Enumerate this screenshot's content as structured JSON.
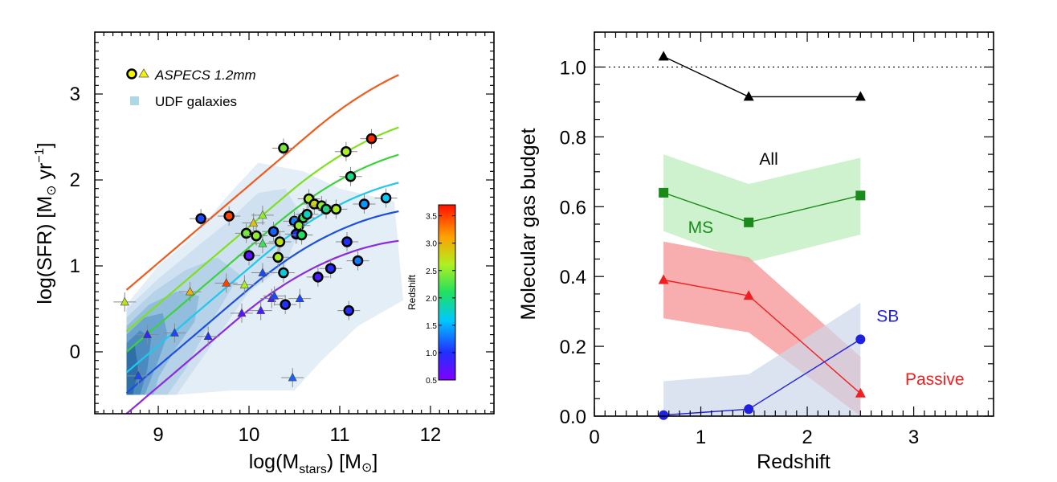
{
  "chart_data": [
    {
      "type": "scatter",
      "title": "",
      "xlabel": "log(M",
      "xlabel_sub": "stars",
      "xlabel_unit": ") [M",
      "xlabel_close": "]",
      "ylabel": "log(SFR) [M",
      "ylabel_unit": " yr",
      "ylabel_exp": "−1",
      "ylabel_close": "]",
      "sun_symbol": "⊙",
      "xlim": [
        8.3,
        12.7
      ],
      "ylim": [
        -0.72,
        3.72
      ],
      "xticks": [
        {
          "v": 9,
          "label": "9"
        },
        {
          "v": 10,
          "label": "10"
        },
        {
          "v": 11,
          "label": "11"
        },
        {
          "v": 12,
          "label": "12"
        }
      ],
      "yticks": [
        {
          "v": 0,
          "label": "0"
        },
        {
          "v": 1,
          "label": "1"
        },
        {
          "v": 2,
          "label": "2"
        },
        {
          "v": 3,
          "label": "3"
        }
      ],
      "legend": {
        "placement": "top-left",
        "entries": [
          {
            "label": "ASPECS 1.2mm",
            "style": "italic",
            "marker": "circle+triangle",
            "color": "#f2f20a"
          },
          {
            "label": "UDF galaxies",
            "style": "normal",
            "marker": "square",
            "color": "#add8e6"
          }
        ]
      },
      "colorbar": {
        "label": "Redshift",
        "range": [
          0.5,
          3.7
        ],
        "ticks": [
          {
            "v": 0.5,
            "label": "0.5"
          },
          {
            "v": 1.0,
            "label": "1.0"
          },
          {
            "v": 1.5,
            "label": "1.5"
          },
          {
            "v": 2.0,
            "label": "2.0"
          },
          {
            "v": 2.5,
            "label": "2.5"
          },
          {
            "v": 3.0,
            "label": "3.0"
          },
          {
            "v": 3.5,
            "label": "3.5"
          }
        ]
      },
      "main_sequence_curves": [
        {
          "z": 0.5,
          "color": "#8a2be2"
        },
        {
          "z": 1.0,
          "color": "#1e50e0"
        },
        {
          "z": 1.5,
          "color": "#1ec8ee"
        },
        {
          "z": 2.0,
          "color": "#3cd23c"
        },
        {
          "z": 2.5,
          "color": "#7fe01e"
        },
        {
          "z": 3.5,
          "color": "#f05a1e"
        }
      ],
      "series": [
        {
          "name": "ASPECS 1.2mm",
          "marker": "circle",
          "points": [
            {
              "x": 9.47,
              "y": 1.55,
              "z": 1.1
            },
            {
              "x": 9.78,
              "y": 1.58,
              "z": 3.5
            },
            {
              "x": 9.97,
              "y": 1.38,
              "z": 2.4
            },
            {
              "x": 10.0,
              "y": 1.12,
              "z": 0.7
            },
            {
              "x": 10.08,
              "y": 1.35,
              "z": 2.5
            },
            {
              "x": 10.27,
              "y": 1.4,
              "z": 1.2
            },
            {
              "x": 10.32,
              "y": 1.1,
              "z": 2.6
            },
            {
              "x": 10.34,
              "y": 1.28,
              "z": 2.7
            },
            {
              "x": 10.38,
              "y": 2.37,
              "z": 2.4
            },
            {
              "x": 10.38,
              "y": 0.92,
              "z": 1.7
            },
            {
              "x": 10.4,
              "y": 0.55,
              "z": 1.0
            },
            {
              "x": 10.5,
              "y": 1.52,
              "z": 1.3
            },
            {
              "x": 10.52,
              "y": 1.37,
              "z": 1.0
            },
            {
              "x": 10.55,
              "y": 1.47,
              "z": 2.5
            },
            {
              "x": 10.58,
              "y": 1.36,
              "z": 2.1
            },
            {
              "x": 10.6,
              "y": 1.56,
              "z": 2.2
            },
            {
              "x": 10.64,
              "y": 1.6,
              "z": 1.8
            },
            {
              "x": 10.66,
              "y": 1.78,
              "z": 2.6
            },
            {
              "x": 10.72,
              "y": 1.72,
              "z": 2.8
            },
            {
              "x": 10.76,
              "y": 0.87,
              "z": 0.8
            },
            {
              "x": 10.8,
              "y": 1.7,
              "z": 2.5
            },
            {
              "x": 10.85,
              "y": 1.66,
              "z": 2.0
            },
            {
              "x": 10.9,
              "y": 0.97,
              "z": 1.0
            },
            {
              "x": 10.96,
              "y": 1.66,
              "z": 2.6
            },
            {
              "x": 11.07,
              "y": 2.33,
              "z": 2.6
            },
            {
              "x": 11.08,
              "y": 1.28,
              "z": 1.0
            },
            {
              "x": 11.1,
              "y": 0.48,
              "z": 1.0
            },
            {
              "x": 11.12,
              "y": 2.04,
              "z": 2.0
            },
            {
              "x": 11.2,
              "y": 1.06,
              "z": 1.3
            },
            {
              "x": 11.27,
              "y": 1.72,
              "z": 1.4
            },
            {
              "x": 11.35,
              "y": 2.48,
              "z": 3.6
            },
            {
              "x": 11.51,
              "y": 1.79,
              "z": 1.6
            }
          ]
        },
        {
          "name": "",
          "marker": "triangle",
          "points": [
            {
              "x": 8.63,
              "y": 0.58,
              "z": 2.7
            },
            {
              "x": 8.78,
              "y": -0.28,
              "z": 1.1
            },
            {
              "x": 8.88,
              "y": 0.2,
              "z": 0.9
            },
            {
              "x": 9.18,
              "y": 0.22,
              "z": 1.1
            },
            {
              "x": 9.35,
              "y": 0.7,
              "z": 3.0
            },
            {
              "x": 9.55,
              "y": 0.18,
              "z": 1.0
            },
            {
              "x": 9.75,
              "y": 0.8,
              "z": 3.5
            },
            {
              "x": 9.92,
              "y": 0.45,
              "z": 0.7
            },
            {
              "x": 9.95,
              "y": 0.78,
              "z": 2.6
            },
            {
              "x": 10.05,
              "y": 1.5,
              "z": 2.9
            },
            {
              "x": 10.13,
              "y": 0.48,
              "z": 0.8
            },
            {
              "x": 10.15,
              "y": 1.59,
              "z": 2.5
            },
            {
              "x": 10.15,
              "y": 1.26,
              "z": 2.2
            },
            {
              "x": 10.15,
              "y": 0.92,
              "z": 1.1
            },
            {
              "x": 10.25,
              "y": 0.62,
              "z": 0.8
            },
            {
              "x": 10.28,
              "y": 0.65,
              "z": 1.1
            },
            {
              "x": 10.48,
              "y": -0.3,
              "z": 1.2
            },
            {
              "x": 10.56,
              "y": 0.62,
              "z": 1.1
            }
          ]
        }
      ]
    },
    {
      "type": "line",
      "title": "",
      "xlabel": "Redshift",
      "ylabel": "Molecular gas budget",
      "xlim": [
        0,
        3.75
      ],
      "ylim": [
        0,
        1.1
      ],
      "xticks": [
        {
          "v": 0,
          "label": "0"
        },
        {
          "v": 1,
          "label": "1"
        },
        {
          "v": 2,
          "label": "2"
        },
        {
          "v": 3,
          "label": "3"
        }
      ],
      "yticks": [
        {
          "v": 0,
          "label": "0.0"
        },
        {
          "v": 0.2,
          "label": "0.2"
        },
        {
          "v": 0.4,
          "label": "0.4"
        },
        {
          "v": 0.6,
          "label": "0.6"
        },
        {
          "v": 0.8,
          "label": "0.8"
        },
        {
          "v": 1.0,
          "label": "1.0"
        }
      ],
      "reference_line": {
        "y": 1.0,
        "style": "dotted"
      },
      "x": [
        0.65,
        1.45,
        2.5
      ],
      "series": [
        {
          "name": "All",
          "color": "#000000",
          "marker": "triangle",
          "values": [
            1.03,
            0.915,
            0.915
          ],
          "band": null
        },
        {
          "name": "MS",
          "color": "#1a8a1a",
          "marker": "square",
          "values": [
            0.64,
            0.555,
            0.632
          ],
          "band": {
            "lower": [
              0.53,
              0.44,
              0.52
            ],
            "upper": [
              0.75,
              0.665,
              0.74
            ],
            "color": "#cdf2cd"
          }
        },
        {
          "name": "Passive",
          "color": "#f02020",
          "marker": "triangle",
          "values": [
            0.39,
            0.345,
            0.065
          ],
          "band": {
            "lower": [
              0.28,
              0.24,
              0.0
            ],
            "upper": [
              0.5,
              0.455,
              0.17
            ],
            "color": "#f7a0a0"
          }
        },
        {
          "name": "SB",
          "color": "#2020e0",
          "marker": "circle",
          "values": [
            0.003,
            0.02,
            0.22
          ],
          "band": {
            "lower": [
              0.0,
              0.0,
              0.0
            ],
            "upper": [
              0.1,
              0.12,
              0.325
            ],
            "color": "#ccd7ea"
          }
        }
      ],
      "annotations": [
        {
          "text": "All",
          "color": "#000000",
          "x": 1.55,
          "y": 0.72
        },
        {
          "text": "MS",
          "color": "#1a8a1a",
          "x": 0.88,
          "y": 0.525
        },
        {
          "text": "SB",
          "color": "#2020e0",
          "x": 2.65,
          "y": 0.27
        },
        {
          "text": "Passive",
          "color": "#f02020",
          "x": 2.92,
          "y": 0.09
        }
      ]
    }
  ]
}
